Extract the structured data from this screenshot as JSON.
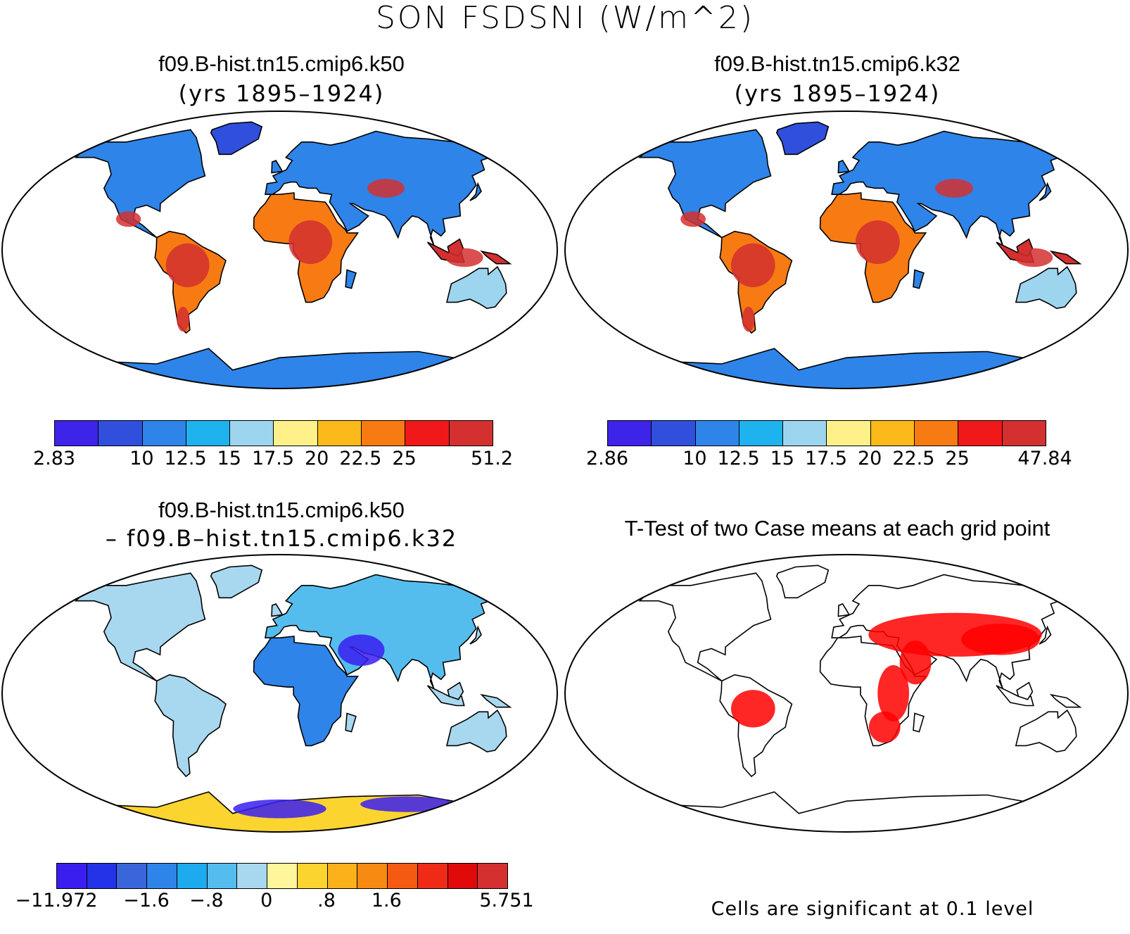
{
  "main_title": "SON FSDSNI (W/m^2)",
  "panels": [
    {
      "title": "f09.B-hist.tn15.cmip6.k50",
      "subtitle": "(yrs 1895–1924)"
    },
    {
      "title": "f09.B-hist.tn15.cmip6.k32",
      "subtitle": "(yrs 1895–1924)"
    },
    {
      "title": "f09.B-hist.tn15.cmip6.k50",
      "subtitle": "– f09.B–hist.tn15.cmip6.k32"
    },
    {
      "title": "T-Test of two Case means at each grid point",
      "subtitle": ""
    }
  ],
  "colorbars": {
    "cb1": {
      "colors": [
        "#3e23e8",
        "#2f4fdc",
        "#2e84e8",
        "#1eb2ee",
        "#9dd5ef",
        "#fff08a",
        "#fbba1a",
        "#f77b12",
        "#f01818",
        "#d43030"
      ],
      "labels": [
        "2.83",
        "10",
        "12.5",
        "15",
        "17.5",
        "20",
        "22.5",
        "25",
        "51.2"
      ]
    },
    "cb2": {
      "colors": [
        "#3e23e8",
        "#2f4fdc",
        "#2e84e8",
        "#1eb2ee",
        "#9dd5ef",
        "#fff08a",
        "#fbba1a",
        "#f77b12",
        "#f01818",
        "#d43030"
      ],
      "labels": [
        "2.86",
        "10",
        "12.5",
        "15",
        "17.5",
        "20",
        "22.5",
        "25",
        "47.84"
      ]
    },
    "cb3": {
      "colors": [
        "#3a1ef0",
        "#2233e8",
        "#3a66dc",
        "#2e84e8",
        "#1eaaee",
        "#55bdee",
        "#a8d8f0",
        "#fff59a",
        "#fbd430",
        "#fbb21a",
        "#f78a12",
        "#f55a12",
        "#ef2b18",
        "#e00a0a",
        "#d43030"
      ],
      "labels": [
        "−11.972",
        "−1.6",
        "−.8",
        "0",
        ".8",
        "1.6",
        "5.751"
      ]
    }
  },
  "significance_note": "Cells are significant at 0.1 level",
  "map_colors": {
    "ocean": "#ffffff",
    "coast": "#000000",
    "significant": "#ff0000"
  }
}
